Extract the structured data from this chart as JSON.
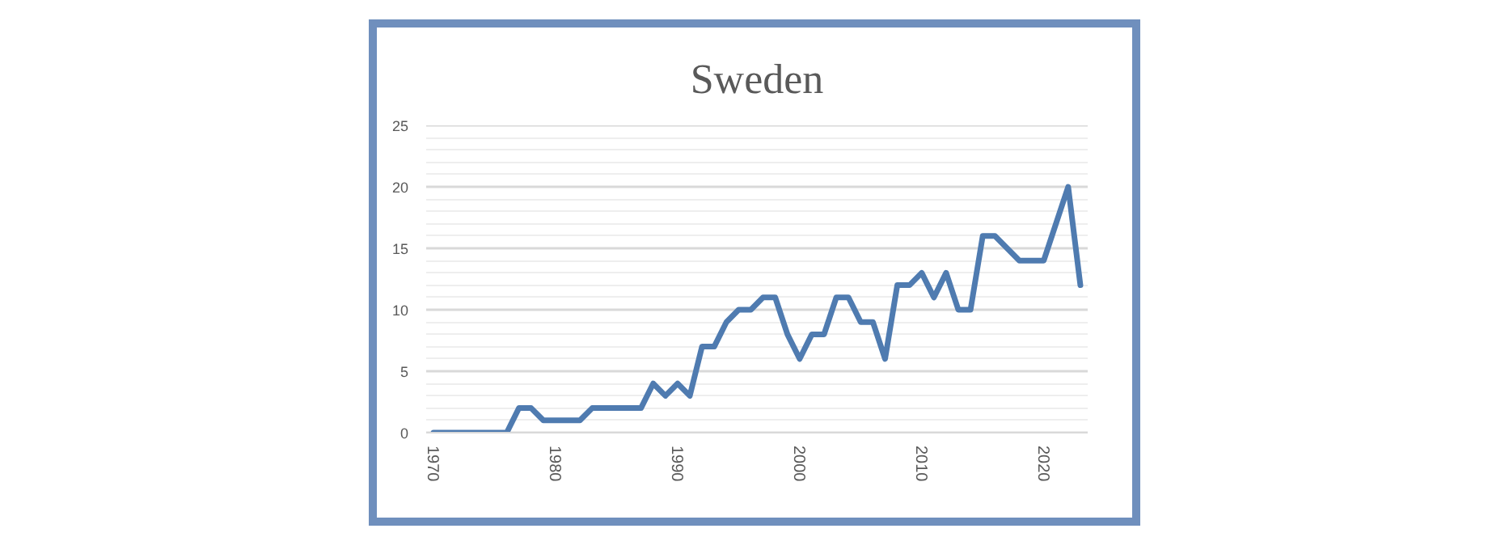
{
  "chart_data": {
    "type": "line",
    "title": "Sweden",
    "color": "#4f7bb0",
    "x": [
      1970,
      1971,
      1972,
      1973,
      1974,
      1975,
      1976,
      1977,
      1978,
      1979,
      1980,
      1981,
      1982,
      1983,
      1984,
      1985,
      1986,
      1987,
      1988,
      1989,
      1990,
      1991,
      1992,
      1993,
      1994,
      1995,
      1996,
      1997,
      1998,
      1999,
      2000,
      2001,
      2002,
      2003,
      2004,
      2005,
      2006,
      2007,
      2008,
      2009,
      2010,
      2011,
      2012,
      2013,
      2014,
      2015,
      2016,
      2017,
      2018,
      2019,
      2020,
      2021,
      2022,
      2023
    ],
    "values": [
      0,
      0,
      0,
      0,
      0,
      0,
      0,
      2,
      2,
      1,
      1,
      1,
      1,
      2,
      2,
      2,
      2,
      2,
      4,
      3,
      4,
      3,
      7,
      7,
      9,
      10,
      10,
      11,
      11,
      8,
      6,
      8,
      8,
      11,
      11,
      9,
      9,
      6,
      12,
      12,
      13,
      11,
      13,
      10,
      10,
      16,
      16,
      15,
      14,
      14,
      14,
      17,
      20,
      12
    ],
    "xlim": [
      1969.4,
      2023.6
    ],
    "xticks": [
      1970,
      1980,
      1990,
      2000,
      2010,
      2020
    ],
    "ylim": [
      0,
      25
    ],
    "yticks": [
      0,
      5,
      10,
      15,
      20,
      25
    ],
    "grid": "y"
  }
}
